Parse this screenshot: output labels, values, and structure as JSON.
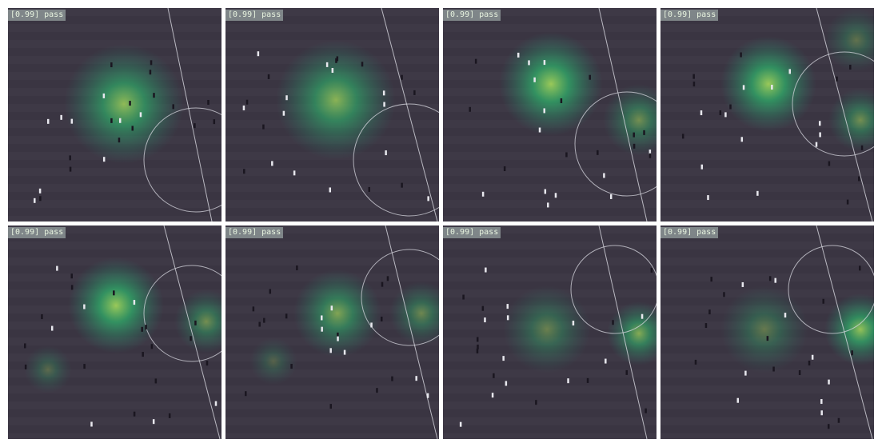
{
  "panels": [
    {
      "label": "[0.99] pass"
    },
    {
      "label": "[0.99] pass"
    },
    {
      "label": "[0.99] pass"
    },
    {
      "label": "[0.99] pass"
    },
    {
      "label": "[0.99] pass"
    },
    {
      "label": "[0.99] pass"
    },
    {
      "label": "[0.99] pass"
    },
    {
      "label": "[0.99] pass"
    }
  ]
}
